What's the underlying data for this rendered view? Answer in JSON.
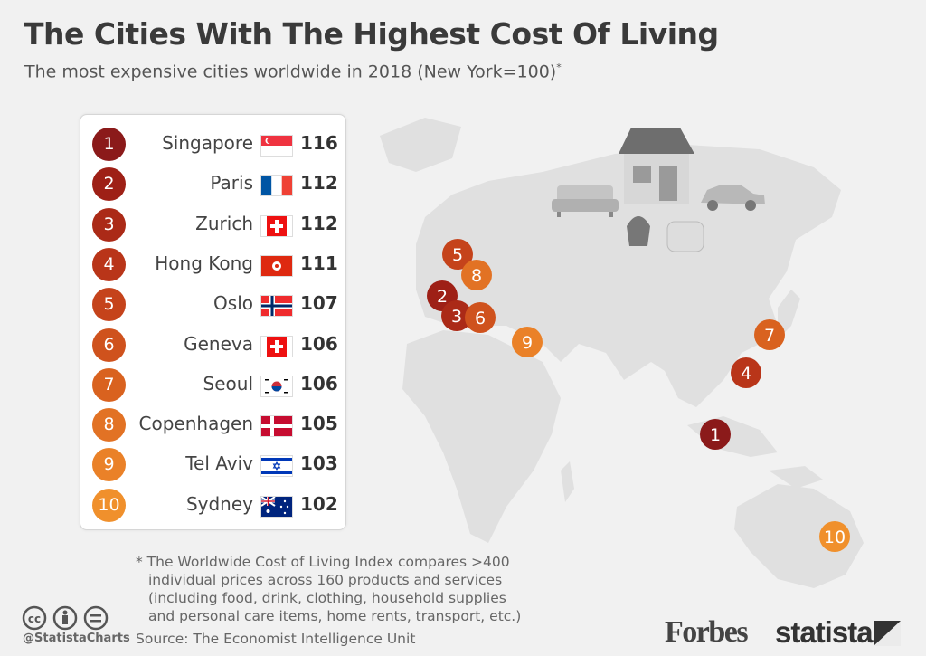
{
  "title": "The Cities With The Highest Cost Of Living",
  "subtitle": "The most expensive cities worldwide in 2018 (New York=100)",
  "subtitle_mark": "*",
  "chart_data": {
    "type": "table",
    "columns": [
      "rank",
      "city",
      "index"
    ],
    "rows": [
      {
        "rank": "1",
        "city": "Singapore",
        "value": "116",
        "color": "#8b1a1a",
        "flag": "singapore"
      },
      {
        "rank": "2",
        "city": "Paris",
        "value": "112",
        "color": "#9e2016",
        "flag": "france"
      },
      {
        "rank": "3",
        "city": "Zurich",
        "value": "112",
        "color": "#ab2a17",
        "flag": "switzerland"
      },
      {
        "rank": "4",
        "city": "Hong Kong",
        "value": "111",
        "color": "#b93519",
        "flag": "hongkong"
      },
      {
        "rank": "5",
        "city": "Oslo",
        "value": "107",
        "color": "#c5431b",
        "flag": "norway"
      },
      {
        "rank": "6",
        "city": "Geneva",
        "value": "106",
        "color": "#cf521d",
        "flag": "switzerland"
      },
      {
        "rank": "7",
        "city": "Seoul",
        "value": "106",
        "color": "#d9621f",
        "flag": "korea"
      },
      {
        "rank": "8",
        "city": "Copenhagen",
        "value": "105",
        "color": "#e27224",
        "flag": "denmark"
      },
      {
        "rank": "9",
        "city": "Tel Aviv",
        "value": "103",
        "color": "#ea8128",
        "flag": "israel"
      },
      {
        "rank": "10",
        "city": "Sydney",
        "value": "102",
        "color": "#f0902c",
        "flag": "australia"
      }
    ]
  },
  "footnote": [
    "* The Worldwide Cost of Living Index compares >400",
    "individual prices across 160 products and services",
    "(including food, drink, clothing, household supplies",
    "and personal care items, home rents, transport, etc.)"
  ],
  "handle": "@StatistaCharts",
  "source": "Source: The Economist Intelligence Unit",
  "logos": {
    "forbes": "Forbes",
    "statista": "statista"
  },
  "icons": [
    "cc-icon",
    "attribution-icon",
    "no-derivatives-icon",
    "house-icon",
    "sofa-icon",
    "car-icon",
    "bag-icon",
    "bread-icon"
  ]
}
